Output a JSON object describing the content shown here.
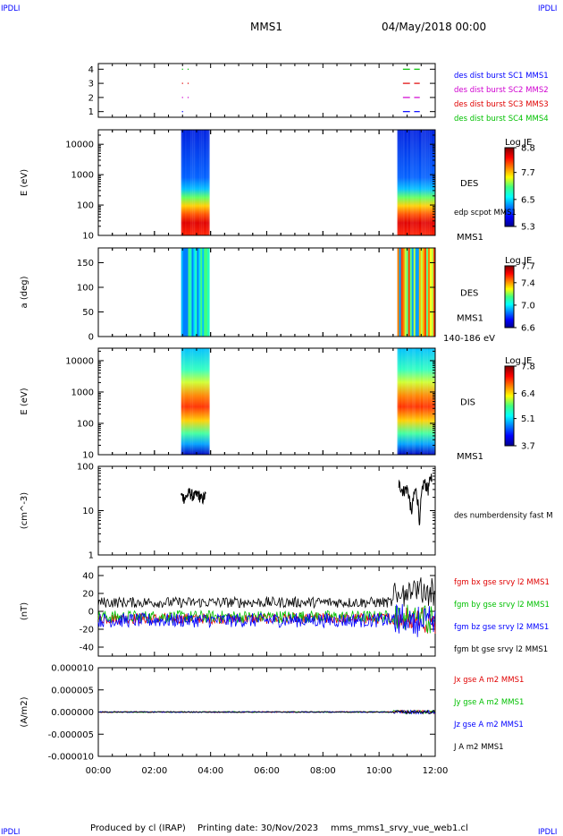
{
  "header": {
    "corner_left": "IPDLI",
    "corner_right": "IPDLI",
    "title": "MMS1",
    "date": "04/May/2018 00:00"
  },
  "footer": {
    "produced": "Produced by cl (IRAP)",
    "printing": "Printing date: 30/Nov/2023",
    "file": "mms_mms1_srvy_vue_web1.cl",
    "corner_left": "IPDLI",
    "corner_right": "IPDLI"
  },
  "colors": {
    "blue": "#0000ff",
    "magenta": "#d000d0",
    "red": "#e00000",
    "green": "#00c000",
    "black": "#000000"
  },
  "chart_data": [
    {
      "type": "scatter",
      "id": "burst",
      "ylabel": "",
      "ylim": [
        0.6,
        4.4
      ],
      "yticks": [
        1,
        2,
        3,
        4
      ],
      "xlim": [
        0,
        12
      ],
      "legend": [
        {
          "name": "des dist burst SC1 MMS1",
          "color": "#0000ff"
        },
        {
          "name": "des dist burst SC2 MMS2",
          "color": "#d000d0"
        },
        {
          "name": "des dist burst SC3 MMS3",
          "color": "#e00000"
        },
        {
          "name": "des dist burst SC4 MMS4",
          "color": "#00c000"
        }
      ],
      "intervals": [
        {
          "level": 1,
          "color": "#0000ff",
          "x": [
            [
              2.98,
              3.02
            ],
            [
              10.85,
              11.1
            ],
            [
              11.25,
              11.45
            ]
          ]
        },
        {
          "level": 2,
          "color": "#d000d0",
          "x": [
            [
              2.98,
              3.02
            ],
            [
              3.18,
              3.22
            ],
            [
              10.85,
              11.1
            ],
            [
              11.25,
              11.45
            ]
          ]
        },
        {
          "level": 3,
          "color": "#e00000",
          "x": [
            [
              2.98,
              3.02
            ],
            [
              3.18,
              3.22
            ],
            [
              10.85,
              11.1
            ],
            [
              11.25,
              11.45
            ]
          ]
        },
        {
          "level": 4,
          "color": "#00c000",
          "x": [
            [
              2.98,
              3.02
            ],
            [
              3.18,
              3.22
            ],
            [
              10.85,
              11.1
            ],
            [
              11.25,
              11.45
            ]
          ]
        }
      ]
    },
    {
      "type": "heatmap",
      "id": "des_energy",
      "ylabel": "E (eV)",
      "yscale": "log",
      "ylim": [
        10,
        30000
      ],
      "yticks": [
        "10",
        "100",
        "1000",
        "10000"
      ],
      "colorbar_label": "Log JE",
      "colorbar_ticks": [
        "5.3",
        "6.5",
        "7.7",
        "8.8"
      ],
      "colorbar_range": [
        5.3,
        8.8
      ],
      "right_label": "DES",
      "right_sublabel": "edp scpot MMS1",
      "bottom_right_label": "MMS1",
      "intervals": [
        [
          2.95,
          3.95
        ],
        [
          10.65,
          12.0
        ]
      ]
    },
    {
      "type": "heatmap",
      "id": "des_pitch",
      "ylabel": "a (deg)",
      "ylim": [
        0,
        180
      ],
      "yticks": [
        "0",
        "50",
        "100",
        "150"
      ],
      "colorbar_label": "Log JE",
      "colorbar_ticks": [
        "6.6",
        "7.0",
        "7.4",
        "7.7"
      ],
      "colorbar_range": [
        6.6,
        7.7
      ],
      "right_label": "DES",
      "right_sublabel": "MMS1",
      "bottom_right_label": "140-186 eV",
      "intervals": [
        [
          2.95,
          3.95
        ],
        [
          10.65,
          12.0
        ]
      ]
    },
    {
      "type": "heatmap",
      "id": "dis_energy",
      "ylabel": "E (eV)",
      "yscale": "log",
      "ylim": [
        10,
        25000
      ],
      "yticks": [
        "10",
        "100",
        "1000",
        "10000"
      ],
      "colorbar_label": "Log JE",
      "colorbar_ticks": [
        "3.7",
        "5.1",
        "6.4",
        "7.8"
      ],
      "colorbar_range": [
        3.7,
        7.8
      ],
      "right_label": "DIS",
      "bottom_right_label": "MMS1",
      "intervals": [
        [
          2.95,
          3.95
        ],
        [
          10.65,
          12.0
        ]
      ]
    },
    {
      "type": "line",
      "id": "density",
      "ylabel": "(cm^-3)",
      "yscale": "log",
      "ylim": [
        1,
        100
      ],
      "yticks": [
        "1",
        "10",
        "100"
      ],
      "series": [
        {
          "name": "des numberdensity fast M",
          "color": "#000000",
          "segments": [
            {
              "x": [
                2.95,
                3.1,
                3.25,
                3.4,
                3.55,
                3.7,
                3.85
              ],
              "y": [
                22,
                19,
                26,
                21,
                24,
                18,
                23
              ]
            },
            {
              "x": [
                10.7,
                10.85,
                11.0,
                11.15,
                11.3,
                11.45,
                11.6,
                11.75,
                11.9
              ],
              "y": [
                40,
                28,
                32,
                8,
                30,
                4,
                45,
                30,
                70
              ]
            }
          ]
        }
      ]
    },
    {
      "type": "line",
      "id": "bfield",
      "ylabel": "(nT)",
      "ylim": [
        -50,
        50
      ],
      "yticks": [
        "-40",
        "-20",
        "0",
        "20",
        "40"
      ],
      "series": [
        {
          "name": "fgm bx gse srvy l2 MMS1",
          "color": "#e00000"
        },
        {
          "name": "fgm by gse srvy l2 MMS1",
          "color": "#00c000"
        },
        {
          "name": "fgm bz gse srvy l2 MMS1",
          "color": "#0000ff"
        },
        {
          "name": "fgm bt gse srvy l2 MMS1",
          "color": "#000000"
        }
      ]
    },
    {
      "type": "line",
      "id": "current",
      "ylabel": "(A/m2)",
      "ylim": [
        -1e-05,
        1e-05
      ],
      "yticks": [
        "-0.000010",
        "-0.000005",
        "0.000000",
        "0.000005",
        "0.000010"
      ],
      "series": [
        {
          "name": "Jx gse A m2 MMS1",
          "color": "#e00000"
        },
        {
          "name": "Jy gse A m2 MMS1",
          "color": "#00c000"
        },
        {
          "name": "Jz gse A m2 MMS1",
          "color": "#0000ff"
        },
        {
          "name": "J A m2 MMS1",
          "color": "#000000"
        }
      ]
    }
  ],
  "xaxis": {
    "xlim": [
      0,
      12
    ],
    "ticks": [
      0,
      2,
      4,
      6,
      8,
      10,
      12
    ],
    "tick_labels": [
      "00:00",
      "02:00",
      "04:00",
      "06:00",
      "08:00",
      "10:00",
      "12:00"
    ]
  }
}
